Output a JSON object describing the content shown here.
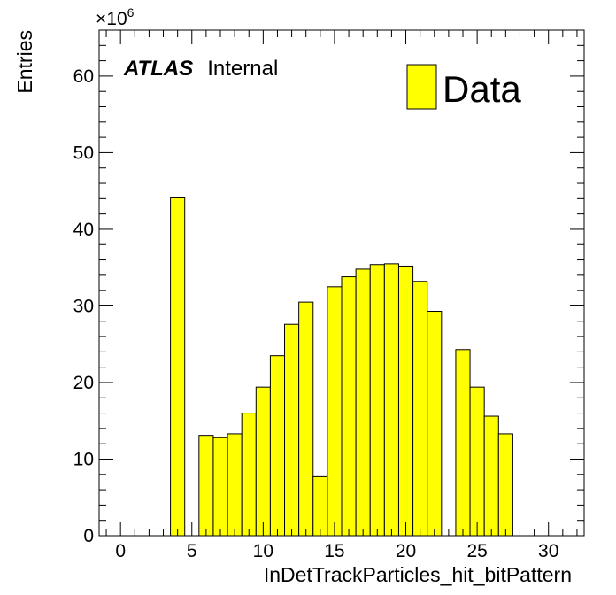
{
  "chart_data": {
    "type": "bar",
    "histogram": true,
    "xlabel": "InDetTrackParticles_hit_bitPattern",
    "ylabel": "Entries",
    "y_multiplier_base": "×10",
    "y_multiplier_exp": "6",
    "xlim": [
      -1.5,
      32.5
    ],
    "ylim": [
      0,
      66
    ],
    "xticks": [
      0,
      5,
      10,
      15,
      20,
      25,
      30
    ],
    "yticks": [
      0,
      10,
      20,
      30,
      40,
      50,
      60
    ],
    "bin_width": 1,
    "fill_color": "#ffff00",
    "edge_color": "#000000",
    "annotation": {
      "experiment": "ATLAS",
      "status": "Internal"
    },
    "legend": {
      "placement": "top-right",
      "entries": [
        {
          "label": "Data",
          "color": "#ffff00"
        }
      ]
    },
    "series": [
      {
        "name": "Data",
        "bins": [
          {
            "center": 4,
            "value": 44.1
          },
          {
            "center": 6,
            "value": 13.1
          },
          {
            "center": 7,
            "value": 12.8
          },
          {
            "center": 8,
            "value": 13.3
          },
          {
            "center": 9,
            "value": 16.0
          },
          {
            "center": 10,
            "value": 19.4
          },
          {
            "center": 11,
            "value": 23.5
          },
          {
            "center": 12,
            "value": 27.6
          },
          {
            "center": 13,
            "value": 30.5
          },
          {
            "center": 14,
            "value": 7.7
          },
          {
            "center": 15,
            "value": 32.5
          },
          {
            "center": 16,
            "value": 33.8
          },
          {
            "center": 17,
            "value": 34.8
          },
          {
            "center": 18,
            "value": 35.4
          },
          {
            "center": 19,
            "value": 35.5
          },
          {
            "center": 20,
            "value": 35.2
          },
          {
            "center": 21,
            "value": 33.2
          },
          {
            "center": 22,
            "value": 29.3
          },
          {
            "center": 24,
            "value": 24.3
          },
          {
            "center": 25,
            "value": 19.4
          },
          {
            "center": 26,
            "value": 15.6
          },
          {
            "center": 27,
            "value": 13.3
          }
        ]
      }
    ]
  }
}
